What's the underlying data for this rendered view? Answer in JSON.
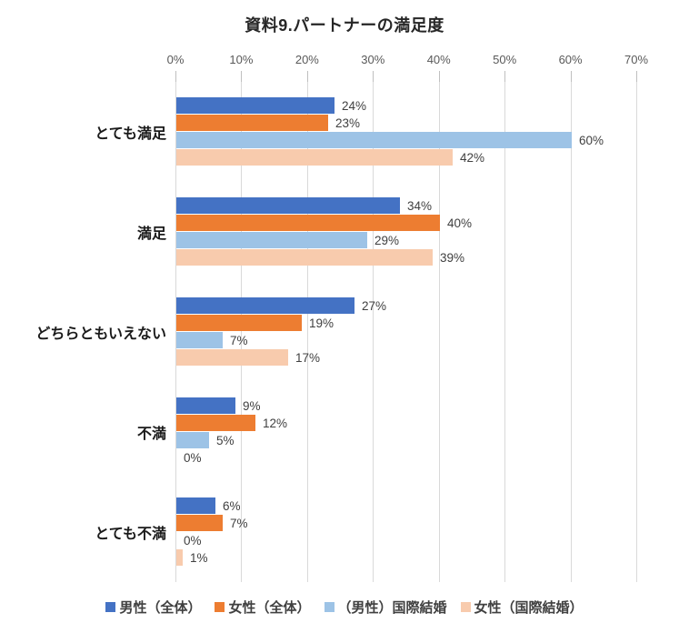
{
  "chart_data": {
    "type": "bar",
    "orientation": "horizontal",
    "title": "資料9.パートナーの満足度",
    "categories": [
      "とても満足",
      "満足",
      "どちらともいえない",
      "不満",
      "とても不満"
    ],
    "series": [
      {
        "name": "男性（全体）",
        "color": "#4472C4",
        "values": [
          24,
          34,
          27,
          9,
          6
        ]
      },
      {
        "name": "女性（全体）",
        "color": "#ED7D31",
        "values": [
          23,
          40,
          19,
          12,
          7
        ]
      },
      {
        "name": "（男性）国際結婚",
        "color": "#9DC3E6",
        "values": [
          60,
          29,
          7,
          5,
          0
        ]
      },
      {
        "name": "女性（国際結婚）",
        "color": "#F8CBAD",
        "values": [
          42,
          39,
          17,
          0,
          1
        ]
      }
    ],
    "x_ticks": [
      "0%",
      "10%",
      "20%",
      "30%",
      "40%",
      "50%",
      "60%",
      "70%"
    ],
    "xlim": [
      0,
      70
    ],
    "data_label_suffix": "%",
    "grid": true,
    "legend_position": "bottom",
    "colors": {
      "gridline": "#D9D9D9",
      "tick": "#BFBFBF",
      "axis_label": "#595959",
      "data_label": "#404040",
      "category_label": "#1A1A1A",
      "title": "#262626",
      "legend_label": "#404040"
    }
  }
}
